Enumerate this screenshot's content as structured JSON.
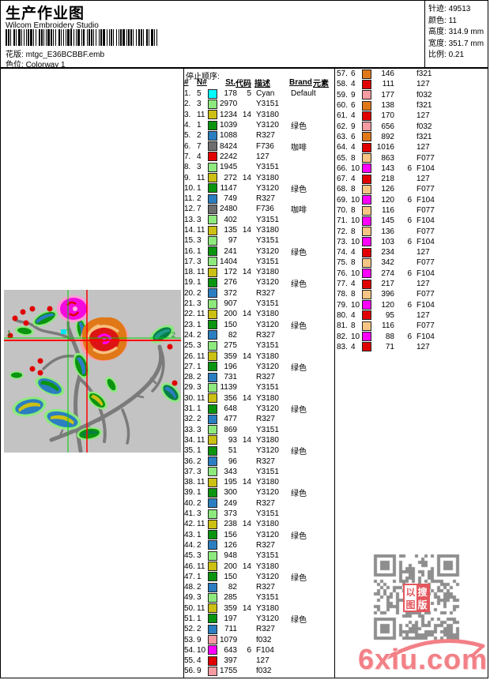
{
  "page": {
    "title": "生产作业图",
    "app": "Wilcom Embroidery Studio",
    "pattern_label": "花版:",
    "pattern_value": "mtgc_E36BCBBF.emb",
    "colorway_label": "色位:",
    "colorway_value": "Colorway 1"
  },
  "stats": {
    "stitches_label": "针迹:",
    "stitches": "49513",
    "colors_label": "颜色:",
    "colors": "11",
    "height_label": "高度:",
    "height": "314.9 mm",
    "width_label": "宽度:",
    "width": "351.7 mm",
    "scale_label": "比例:",
    "scale": "0.21"
  },
  "design": {
    "marker_start": "1",
    "marker_end": "2"
  },
  "palette": {
    "1": "#0b9410",
    "2": "#2b7ec1",
    "3": "#8de97d",
    "4": "#e00000",
    "5": "#00ffff",
    "6": "#e07818",
    "7": "#6e6e6e",
    "8": "#f6c583",
    "9": "#f59ba1",
    "10": "#ff00ff",
    "11": "#cbc013"
  },
  "table": {
    "section_title": "停止顺序:",
    "headers": {
      "idx": "#",
      "n": "N#",
      "st": "St.",
      "code": "代码",
      "desc": "描述",
      "brand": "Brand",
      "elem": "元素"
    },
    "left_rows": [
      [
        1,
        5,
        178,
        "5",
        "Cyan",
        "Default"
      ],
      [
        2,
        3,
        2970,
        "",
        "Y3151",
        ""
      ],
      [
        3,
        11,
        1234,
        "14",
        "Y3180",
        ""
      ],
      [
        4,
        1,
        1039,
        "",
        "Y3120",
        "绿色"
      ],
      [
        5,
        2,
        1088,
        "",
        "R327",
        ""
      ],
      [
        6,
        7,
        8424,
        "",
        "F736",
        "咖啡"
      ],
      [
        7,
        4,
        2242,
        "",
        "127",
        ""
      ],
      [
        8,
        3,
        1945,
        "",
        "Y3151",
        ""
      ],
      [
        9,
        11,
        272,
        "14",
        "Y3180",
        ""
      ],
      [
        10,
        1,
        1147,
        "",
        "Y3120",
        "绿色"
      ],
      [
        11,
        2,
        749,
        "",
        "R327",
        ""
      ],
      [
        12,
        7,
        2480,
        "",
        "F736",
        "咖啡"
      ],
      [
        13,
        3,
        402,
        "",
        "Y3151",
        ""
      ],
      [
        14,
        11,
        135,
        "14",
        "Y3180",
        ""
      ],
      [
        15,
        3,
        97,
        "",
        "Y3151",
        ""
      ],
      [
        16,
        1,
        241,
        "",
        "Y3120",
        "绿色"
      ],
      [
        17,
        3,
        1404,
        "",
        "Y3151",
        ""
      ],
      [
        18,
        11,
        172,
        "14",
        "Y3180",
        ""
      ],
      [
        19,
        1,
        276,
        "",
        "Y3120",
        "绿色"
      ],
      [
        20,
        2,
        372,
        "",
        "R327",
        ""
      ],
      [
        21,
        3,
        907,
        "",
        "Y3151",
        ""
      ],
      [
        22,
        11,
        200,
        "14",
        "Y3180",
        ""
      ],
      [
        23,
        1,
        150,
        "",
        "Y3120",
        "绿色"
      ],
      [
        24,
        2,
        82,
        "",
        "R327",
        ""
      ],
      [
        25,
        3,
        275,
        "",
        "Y3151",
        ""
      ],
      [
        26,
        11,
        359,
        "14",
        "Y3180",
        ""
      ],
      [
        27,
        1,
        196,
        "",
        "Y3120",
        "绿色"
      ],
      [
        28,
        2,
        731,
        "",
        "R327",
        ""
      ],
      [
        29,
        3,
        1139,
        "",
        "Y3151",
        ""
      ],
      [
        30,
        11,
        356,
        "14",
        "Y3180",
        ""
      ],
      [
        31,
        1,
        648,
        "",
        "Y3120",
        "绿色"
      ],
      [
        32,
        2,
        477,
        "",
        "R327",
        ""
      ],
      [
        33,
        3,
        869,
        "",
        "Y3151",
        ""
      ],
      [
        34,
        11,
        93,
        "14",
        "Y3180",
        ""
      ],
      [
        35,
        1,
        51,
        "",
        "Y3120",
        "绿色"
      ],
      [
        36,
        2,
        96,
        "",
        "R327",
        ""
      ],
      [
        37,
        3,
        343,
        "",
        "Y3151",
        ""
      ],
      [
        38,
        11,
        195,
        "14",
        "Y3180",
        ""
      ],
      [
        39,
        1,
        300,
        "",
        "Y3120",
        "绿色"
      ],
      [
        40,
        2,
        249,
        "",
        "R327",
        ""
      ],
      [
        41,
        3,
        373,
        "",
        "Y3151",
        ""
      ],
      [
        42,
        11,
        238,
        "14",
        "Y3180",
        ""
      ],
      [
        43,
        1,
        156,
        "",
        "Y3120",
        "绿色"
      ],
      [
        44,
        2,
        126,
        "",
        "R327",
        ""
      ],
      [
        45,
        3,
        948,
        "",
        "Y3151",
        ""
      ],
      [
        46,
        11,
        200,
        "14",
        "Y3180",
        ""
      ],
      [
        47,
        1,
        150,
        "",
        "Y3120",
        "绿色"
      ],
      [
        48,
        2,
        82,
        "",
        "R327",
        ""
      ],
      [
        49,
        3,
        285,
        "",
        "Y3151",
        ""
      ],
      [
        50,
        11,
        359,
        "14",
        "Y3180",
        ""
      ],
      [
        51,
        1,
        197,
        "",
        "Y3120",
        "绿色"
      ],
      [
        52,
        2,
        711,
        "",
        "R327",
        ""
      ],
      [
        53,
        9,
        1079,
        "",
        "f032",
        ""
      ],
      [
        54,
        10,
        643,
        "6",
        "F104",
        ""
      ],
      [
        55,
        4,
        397,
        "",
        "127",
        ""
      ],
      [
        56,
        9,
        1755,
        "",
        "f032",
        ""
      ]
    ],
    "right_rows": [
      [
        57,
        6,
        146,
        "",
        "f321",
        ""
      ],
      [
        58,
        4,
        111,
        "",
        "127",
        ""
      ],
      [
        59,
        9,
        177,
        "",
        "f032",
        ""
      ],
      [
        60,
        6,
        138,
        "",
        "f321",
        ""
      ],
      [
        61,
        4,
        170,
        "",
        "127",
        ""
      ],
      [
        62,
        9,
        656,
        "",
        "f032",
        ""
      ],
      [
        63,
        6,
        892,
        "",
        "f321",
        ""
      ],
      [
        64,
        4,
        1016,
        "",
        "127",
        ""
      ],
      [
        65,
        8,
        863,
        "",
        "F077",
        ""
      ],
      [
        66,
        10,
        143,
        "6",
        "F104",
        ""
      ],
      [
        67,
        4,
        218,
        "",
        "127",
        ""
      ],
      [
        68,
        8,
        126,
        "",
        "F077",
        ""
      ],
      [
        69,
        10,
        120,
        "6",
        "F104",
        ""
      ],
      [
        70,
        8,
        116,
        "",
        "F077",
        ""
      ],
      [
        71,
        10,
        145,
        "6",
        "F104",
        ""
      ],
      [
        72,
        8,
        136,
        "",
        "F077",
        ""
      ],
      [
        73,
        10,
        103,
        "6",
        "F104",
        ""
      ],
      [
        74,
        4,
        234,
        "",
        "127",
        ""
      ],
      [
        75,
        8,
        342,
        "",
        "F077",
        ""
      ],
      [
        76,
        10,
        274,
        "6",
        "F104",
        ""
      ],
      [
        77,
        4,
        217,
        "",
        "127",
        ""
      ],
      [
        78,
        8,
        396,
        "",
        "F077",
        ""
      ],
      [
        79,
        10,
        120,
        "6",
        "F104",
        ""
      ],
      [
        80,
        4,
        95,
        "",
        "127",
        ""
      ],
      [
        81,
        8,
        116,
        "",
        "F077",
        ""
      ],
      [
        82,
        10,
        88,
        "6",
        "F104",
        ""
      ],
      [
        83,
        4,
        71,
        "",
        "127",
        ""
      ]
    ]
  },
  "watermark": {
    "site": "6xiu.com",
    "stamp": {
      "0": "以",
      "1": "搜",
      "2": "图",
      "3": "版"
    }
  }
}
